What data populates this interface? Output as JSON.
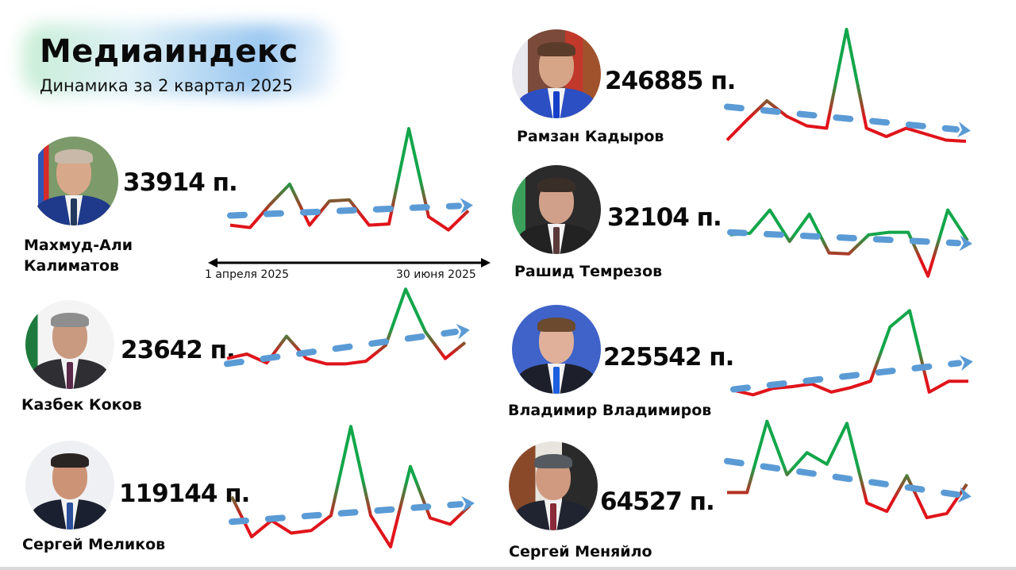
{
  "header": {
    "title": "Медиаиндекс",
    "subtitle": "Динамика за 2 квартал 2025"
  },
  "axis": {
    "start_label": "1 апреля 2025",
    "end_label": "30 июня 2025"
  },
  "colors": {
    "line_high": "#12a64a",
    "line_low": "#e0141b",
    "trend": "#5b9bd5",
    "axis": "#000000"
  },
  "people": [
    {
      "name_line1": "Махмуд-Али",
      "name_line2": "Калиматов",
      "score": "33914 п."
    },
    {
      "name_line1": "Рамзан Кадыров",
      "name_line2": "",
      "score": "246885 п."
    },
    {
      "name_line1": "Рашид Темрезов",
      "name_line2": "",
      "score": "32104 п."
    },
    {
      "name_line1": "Казбек Коков",
      "name_line2": "",
      "score": "23642 п."
    },
    {
      "name_line1": "Владимир Владимиров",
      "name_line2": "",
      "score": "225542 п."
    },
    {
      "name_line1": "Сергей Меликов",
      "name_line2": "",
      "score": "119144 п."
    },
    {
      "name_line1": "Сергей Меняйло",
      "name_line2": "",
      "score": "64527 п."
    }
  ],
  "chart_data": [
    {
      "type": "line",
      "title": "Махмуд-Али Калиматов — 33914 п.",
      "xlabel": "1 апреля 2025 → 30 июня 2025",
      "ylabel": "",
      "x": [
        0,
        1,
        2,
        3,
        4,
        5,
        6,
        7,
        8,
        9,
        10,
        11,
        12
      ],
      "values": [
        18,
        16,
        35,
        52,
        18,
        38,
        39,
        18,
        19,
        98,
        25,
        14,
        30
      ],
      "trend": {
        "start": 26,
        "end": 34,
        "direction": "up"
      }
    },
    {
      "type": "line",
      "title": "Рамзан Кадыров — 246885 п.",
      "x": [
        0,
        1,
        2,
        3,
        4,
        5,
        6,
        7,
        8,
        9,
        10,
        11,
        12
      ],
      "values": [
        5,
        22,
        38,
        25,
        17,
        15,
        98,
        15,
        8,
        15,
        10,
        5,
        4
      ],
      "trend": {
        "start": 33,
        "end": 14,
        "direction": "down"
      }
    },
    {
      "type": "line",
      "title": "Рашид Темрезов — 32104 п.",
      "x": [
        0,
        1,
        2,
        3,
        4,
        5,
        6,
        7,
        8,
        9,
        10,
        11,
        12
      ],
      "values": [
        55,
        57,
        85,
        47,
        80,
        33,
        32,
        55,
        58,
        58,
        5,
        85,
        48
      ],
      "trend": {
        "start": 58,
        "end": 45,
        "direction": "down"
      }
    },
    {
      "type": "line",
      "title": "Казбек Коков — 23642 п.",
      "x": [
        0,
        1,
        2,
        3,
        4,
        5,
        6,
        7,
        8,
        9,
        10,
        11,
        12
      ],
      "values": [
        20,
        25,
        15,
        45,
        20,
        14,
        14,
        17,
        35,
        98,
        50,
        20,
        38
      ],
      "trend": {
        "start": 14,
        "end": 50,
        "direction": "up"
      }
    },
    {
      "type": "line",
      "title": "Владимир Владимиров — 225542 п.",
      "x": [
        0,
        1,
        2,
        3,
        4,
        5,
        6,
        7,
        8,
        9,
        10,
        11,
        12
      ],
      "values": [
        10,
        5,
        12,
        14,
        17,
        8,
        13,
        20,
        80,
        98,
        8,
        20,
        20
      ],
      "trend": {
        "start": 11,
        "end": 40,
        "direction": "up"
      }
    },
    {
      "type": "line",
      "title": "Сергей Меликов — 119144 п.",
      "x": [
        0,
        1,
        2,
        3,
        4,
        5,
        6,
        7,
        8,
        9,
        10,
        11,
        12
      ],
      "values": [
        42,
        10,
        23,
        13,
        15,
        27,
        98,
        27,
        2,
        66,
        25,
        20,
        35
      ],
      "trend": {
        "start": 22,
        "end": 36,
        "direction": "up"
      }
    },
    {
      "type": "line",
      "title": "Сергей Меняйло — 64527 п.",
      "x": [
        0,
        1,
        2,
        3,
        4,
        5,
        6,
        7,
        8,
        9,
        10,
        11,
        12
      ],
      "values": [
        30,
        30,
        98,
        47,
        68,
        57,
        96,
        20,
        12,
        46,
        6,
        10,
        38
      ],
      "trend": {
        "start": 60,
        "end": 28,
        "direction": "down"
      }
    }
  ]
}
